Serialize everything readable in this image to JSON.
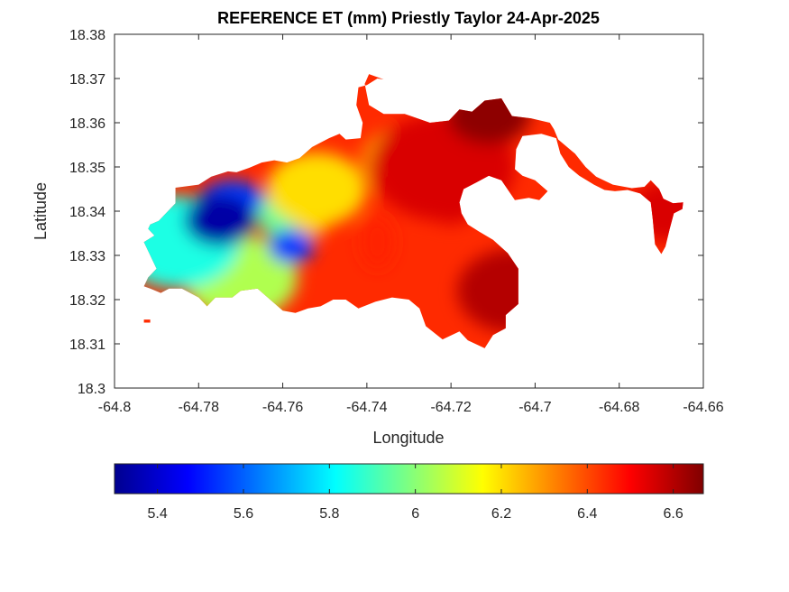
{
  "chart_data": {
    "type": "heatmap",
    "title": "REFERENCE ET (mm) Priestly Taylor 24-Apr-2025",
    "xlabel": "Longitude",
    "ylabel": "Latitude",
    "xlim": [
      -64.8,
      -64.66
    ],
    "ylim": [
      18.3,
      18.38
    ],
    "x_ticks": [
      "-64.8",
      "-64.78",
      "-64.76",
      "-64.74",
      "-64.72",
      "-64.7",
      "-64.68",
      "-64.66"
    ],
    "x_tick_values": [
      -64.8,
      -64.78,
      -64.76,
      -64.74,
      -64.72,
      -64.7,
      -64.68,
      -64.66
    ],
    "y_ticks": [
      "18.3",
      "18.31",
      "18.32",
      "18.33",
      "18.34",
      "18.35",
      "18.36",
      "18.37",
      "18.38"
    ],
    "y_tick_values": [
      18.3,
      18.31,
      18.32,
      18.33,
      18.34,
      18.35,
      18.36,
      18.37,
      18.38
    ],
    "grid": false,
    "colormap": "jet",
    "colorbar": {
      "orientation": "horizontal",
      "placement": "below",
      "range": [
        5.3,
        6.67
      ],
      "ticks": [
        "5.4",
        "5.6",
        "5.8",
        "6",
        "6.2",
        "6.4",
        "6.6"
      ],
      "tick_values": [
        5.4,
        5.6,
        5.8,
        6.0,
        6.2,
        6.4,
        6.6
      ]
    },
    "value_min": 5.35,
    "value_max": 6.65,
    "regions": [
      {
        "lon": -64.775,
        "lat": 18.338,
        "value": 5.35
      },
      {
        "lon": -64.758,
        "lat": 18.332,
        "value": 5.55
      },
      {
        "lon": -64.785,
        "lat": 18.333,
        "value": 5.85
      },
      {
        "lon": -64.77,
        "lat": 18.325,
        "value": 6.05
      },
      {
        "lon": -64.752,
        "lat": 18.345,
        "value": 6.2
      },
      {
        "lon": -64.732,
        "lat": 18.352,
        "value": 6.3
      },
      {
        "lon": -64.722,
        "lat": 18.35,
        "value": 6.55
      },
      {
        "lon": -64.711,
        "lat": 18.362,
        "value": 6.65
      },
      {
        "lon": -64.705,
        "lat": 18.322,
        "value": 6.6
      },
      {
        "lon": -64.668,
        "lat": 18.34,
        "value": 6.55
      }
    ]
  }
}
